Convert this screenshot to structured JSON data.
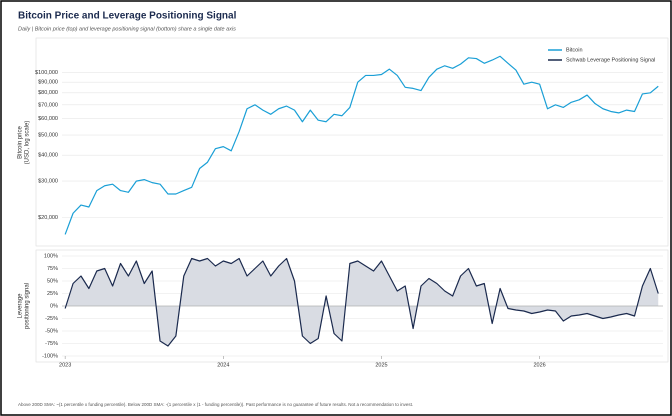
{
  "title": "Bitcoin Price and Leverage Positioning Signal",
  "subtitle": "Daily | Bitcoin price (top) and leverage positioning signal (bottom) share a single date axis",
  "footnote": "Above 200D SMA: ~(1 percentile x funding percentile). Below 200D SMA: -(1 percentile x (1 - funding percentile)). Past performance is no guarantee of future results. Not a recommendation to invest.",
  "chart_data": [
    {
      "type": "line",
      "log_scale": true,
      "grid": true,
      "legend": "upper right",
      "ylabel": [
        "Bitcoin price",
        "(USD, log scale)"
      ],
      "xlim": [
        2022.98,
        2026.78
      ],
      "ylim": [
        15600,
        136000
      ],
      "yticks": [
        {
          "value": 20000,
          "label": "$20,000"
        },
        {
          "value": 30000,
          "label": "$30,000"
        },
        {
          "value": 40000,
          "label": "$40,000"
        },
        {
          "value": 50000,
          "label": "$50,000"
        },
        {
          "value": 60000,
          "label": "$60,000"
        },
        {
          "value": 70000,
          "label": "$70,000"
        },
        {
          "value": 80000,
          "label": "$80,000"
        },
        {
          "value": 90000,
          "label": "$90,000"
        },
        {
          "value": 100000,
          "label": "$100,000"
        }
      ],
      "x": [
        2023.0,
        2023.05,
        2023.1,
        2023.15,
        2023.2,
        2023.25,
        2023.3,
        2023.35,
        2023.4,
        2023.45,
        2023.5,
        2023.55,
        2023.6,
        2023.65,
        2023.7,
        2023.75,
        2023.8,
        2023.85,
        2023.9,
        2023.95,
        2024.0,
        2024.05,
        2024.1,
        2024.15,
        2024.2,
        2024.25,
        2024.3,
        2024.35,
        2024.4,
        2024.45,
        2024.5,
        2024.55,
        2024.6,
        2024.65,
        2024.7,
        2024.75,
        2024.8,
        2024.85,
        2024.9,
        2024.95,
        2025.0,
        2025.05,
        2025.1,
        2025.15,
        2025.2,
        2025.25,
        2025.3,
        2025.35,
        2025.4,
        2025.45,
        2025.5,
        2025.55,
        2025.6,
        2025.65,
        2025.7,
        2025.75,
        2025.8,
        2025.85,
        2025.9,
        2025.95,
        2026.0,
        2026.05,
        2026.1,
        2026.15,
        2026.2,
        2026.25,
        2026.3,
        2026.35,
        2026.4,
        2026.45,
        2026.5,
        2026.55,
        2026.6,
        2026.65,
        2026.7,
        2026.75
      ],
      "series": [
        {
          "name": "Bitcoin",
          "color": "#1a9fd6",
          "values": [
            16600,
            21000,
            23000,
            22500,
            27000,
            28500,
            29000,
            27000,
            26500,
            30000,
            30500,
            29500,
            29000,
            26000,
            26000,
            27000,
            28000,
            34500,
            37000,
            43000,
            44000,
            42000,
            52000,
            67000,
            70000,
            66000,
            63000,
            67000,
            69000,
            66000,
            58000,
            66000,
            59000,
            58000,
            63000,
            62000,
            68000,
            90000,
            97000,
            97000,
            98000,
            104000,
            97000,
            85000,
            84000,
            82000,
            95000,
            104000,
            108000,
            105000,
            110000,
            118000,
            117000,
            111000,
            115000,
            120000,
            111000,
            103000,
            88000,
            90000,
            88000,
            67000,
            70000,
            68000,
            72000,
            74000,
            78000,
            71000,
            67000,
            65000,
            64000,
            66000,
            65000,
            79000,
            80000,
            86000
          ]
        }
      ]
    },
    {
      "type": "area",
      "grid": true,
      "ylabel": [
        "Leverage",
        "positioning signal"
      ],
      "xlim": [
        2022.98,
        2026.78
      ],
      "ylim": [
        -100,
        100
      ],
      "xticks": [
        2023,
        2024,
        2025,
        2026
      ],
      "yticks": [
        {
          "value": -100,
          "label": "-100%"
        },
        {
          "value": -75,
          "label": "-75%"
        },
        {
          "value": -50,
          "label": "-50%"
        },
        {
          "value": -25,
          "label": "-25%"
        },
        {
          "value": 0,
          "label": "0%"
        },
        {
          "value": 25,
          "label": "25%"
        },
        {
          "value": 50,
          "label": "50%"
        },
        {
          "value": 75,
          "label": "75%"
        },
        {
          "value": 100,
          "label": "100%"
        }
      ],
      "x": [
        2023.0,
        2023.05,
        2023.1,
        2023.15,
        2023.2,
        2023.25,
        2023.3,
        2023.35,
        2023.4,
        2023.45,
        2023.5,
        2023.55,
        2023.6,
        2023.65,
        2023.7,
        2023.75,
        2023.8,
        2023.85,
        2023.9,
        2023.95,
        2024.0,
        2024.05,
        2024.1,
        2024.15,
        2024.2,
        2024.25,
        2024.3,
        2024.35,
        2024.4,
        2024.45,
        2024.5,
        2024.55,
        2024.6,
        2024.65,
        2024.7,
        2024.75,
        2024.8,
        2024.85,
        2024.9,
        2024.95,
        2025.0,
        2025.05,
        2025.1,
        2025.15,
        2025.2,
        2025.25,
        2025.3,
        2025.35,
        2025.4,
        2025.45,
        2025.5,
        2025.55,
        2025.6,
        2025.65,
        2025.7,
        2025.75,
        2025.8,
        2025.85,
        2025.9,
        2025.95,
        2026.0,
        2026.05,
        2026.1,
        2026.15,
        2026.2,
        2026.25,
        2026.3,
        2026.35,
        2026.4,
        2026.45,
        2026.5,
        2026.55,
        2026.6,
        2026.65,
        2026.7,
        2026.75
      ],
      "series": [
        {
          "name": "Schwab Leverage Positioning Signal",
          "color": "#1b2a4e",
          "fill": "#d9dce3",
          "values": [
            -5,
            45,
            60,
            35,
            70,
            75,
            40,
            85,
            60,
            90,
            45,
            70,
            -70,
            -80,
            -60,
            60,
            95,
            90,
            95,
            80,
            90,
            85,
            95,
            60,
            75,
            90,
            60,
            80,
            95,
            50,
            -60,
            -75,
            -65,
            20,
            -55,
            -70,
            85,
            90,
            80,
            70,
            90,
            60,
            30,
            40,
            -45,
            40,
            55,
            45,
            30,
            20,
            60,
            75,
            40,
            45,
            -35,
            35,
            -5,
            -8,
            -10,
            -15,
            -12,
            -8,
            -10,
            -30,
            -20,
            -18,
            -15,
            -20,
            -25,
            -22,
            -18,
            -15,
            -20,
            40,
            75,
            25
          ]
        }
      ]
    }
  ]
}
